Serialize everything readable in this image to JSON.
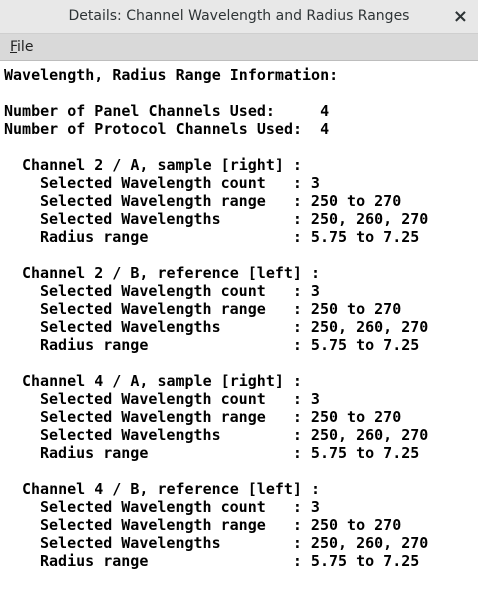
{
  "window": {
    "title": "Details:  Channel Wavelength and Radius Ranges",
    "close": "×"
  },
  "menu": [
    "File"
  ],
  "content": {
    "heading": "Wavelength, Radius Range Information:",
    "summary": [
      "Number of Panel Channels Used:     4",
      "Number of Protocol Channels Used:  4"
    ],
    "channels": [
      {
        "header": "Channel 2 / A, sample [right] :",
        "lines": [
          "Selected Wavelength count   : 3",
          "Selected Wavelength range   : 250 to 270",
          "Selected Wavelengths        : 250, 260, 270",
          "Radius range                : 5.75 to 7.25"
        ]
      },
      {
        "header": "Channel 2 / B, reference [left] :",
        "lines": [
          "Selected Wavelength count   : 3",
          "Selected Wavelength range   : 250 to 270",
          "Selected Wavelengths        : 250, 260, 270",
          "Radius range                : 5.75 to 7.25"
        ]
      },
      {
        "header": "Channel 4 / A, sample [right] :",
        "lines": [
          "Selected Wavelength count   : 3",
          "Selected Wavelength range   : 250 to 270",
          "Selected Wavelengths        : 250, 260, 270",
          "Radius range                : 5.75 to 7.25"
        ]
      },
      {
        "header": "Channel 4 / B, reference [left] :",
        "lines": [
          "Selected Wavelength count   : 3",
          "Selected Wavelength range   : 250 to 270",
          "Selected Wavelengths        : 250, 260, 270",
          "Radius range                : 5.75 to 7.25"
        ]
      }
    ]
  }
}
